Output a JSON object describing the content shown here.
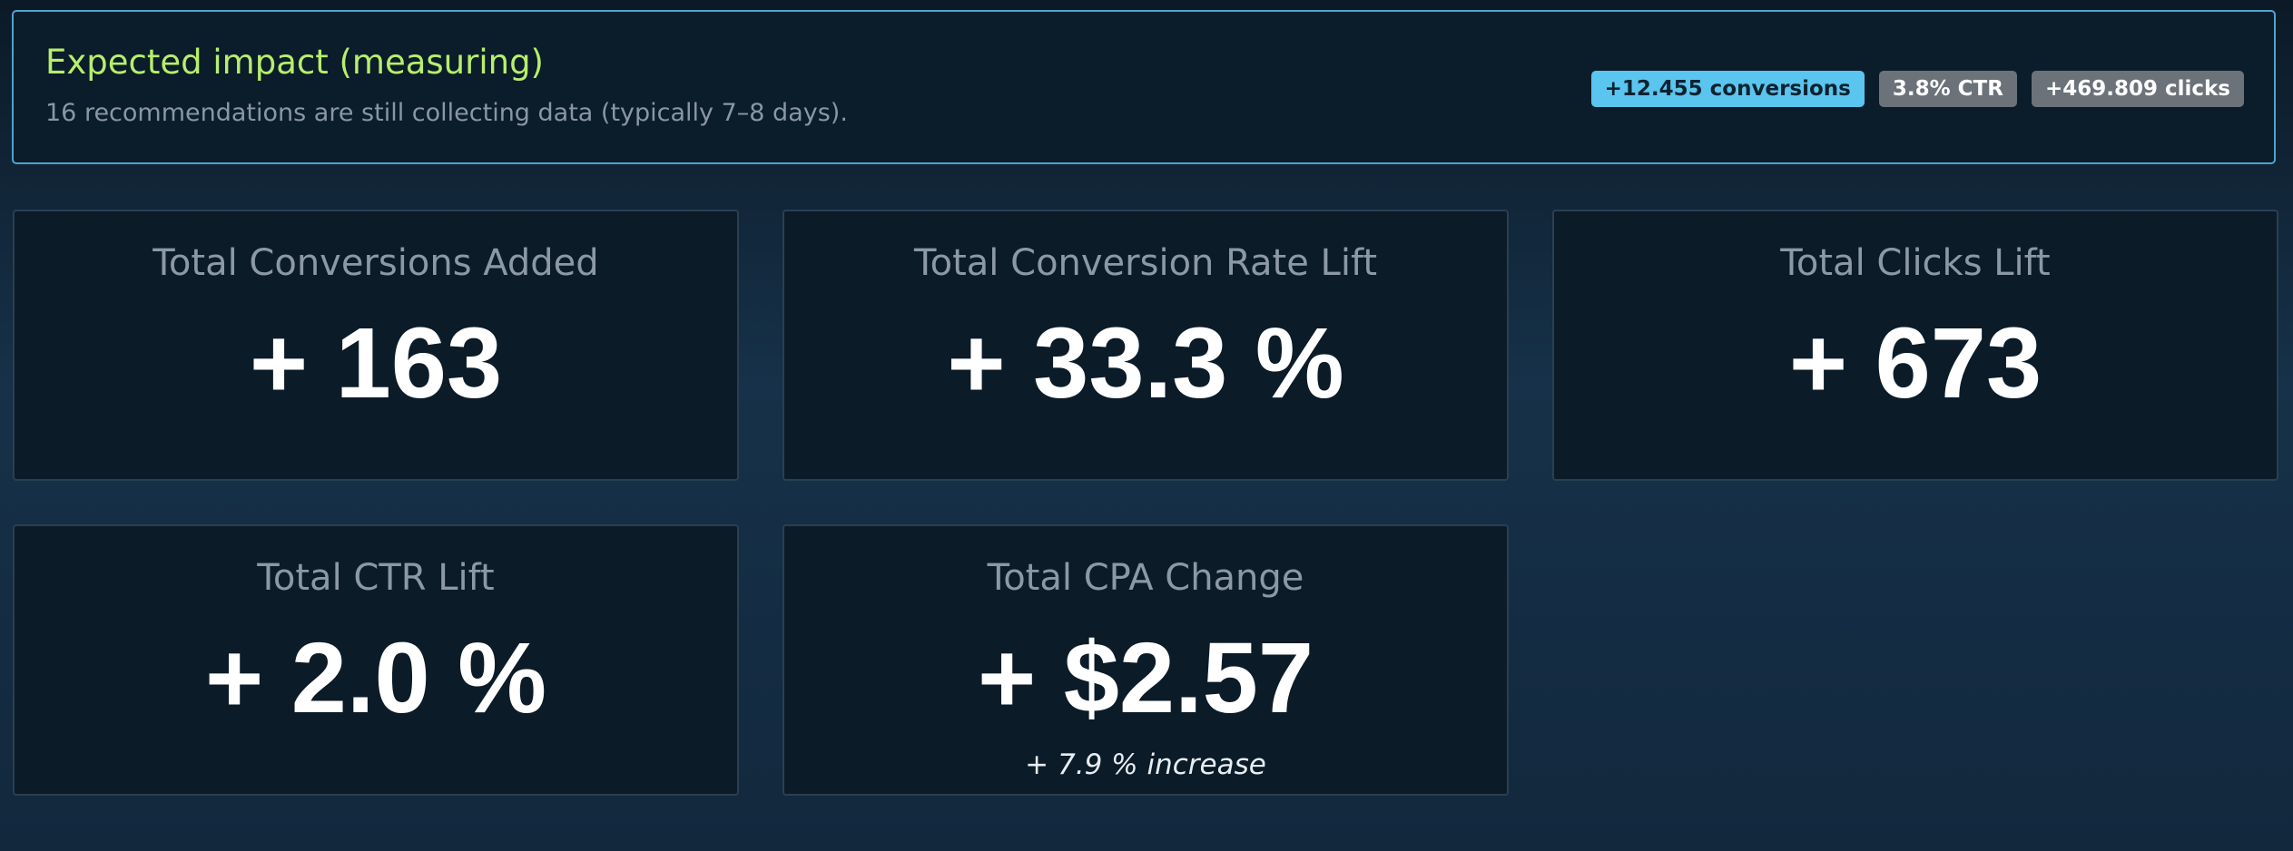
{
  "banner": {
    "title": "Expected impact (measuring)",
    "subtitle": "16 recommendations are still collecting data (typically 7–8 days).",
    "badges": [
      {
        "label": "+12.455 conversions",
        "color": "#5ac5ee"
      },
      {
        "label": "3.8% CTR",
        "color": "#6b7279"
      },
      {
        "label": "+469.809 clicks",
        "color": "#6b7279"
      }
    ]
  },
  "cards": [
    {
      "label": "Total Conversions Added",
      "value": "+ 163"
    },
    {
      "label": "Total Conversion Rate Lift",
      "value": "+ 33.3 %"
    },
    {
      "label": "Total Clicks Lift",
      "value": "+ 673"
    },
    {
      "label": "Total CTR Lift",
      "value": "+ 2.0 %"
    },
    {
      "label": "Total CPA Change",
      "value": "+ $2.57",
      "note": "+ 7.9 % increase"
    }
  ],
  "colors": {
    "accent_title": "#b7ee6c",
    "banner_border": "#4fa3cc"
  }
}
